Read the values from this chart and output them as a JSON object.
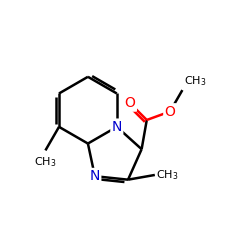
{
  "bg_color": "#ffffff",
  "bond_color": "#000000",
  "N_color": "#0000cd",
  "O_color": "#ff0000",
  "bond_width": 1.8,
  "figsize": [
    2.5,
    2.5
  ],
  "dpi": 100,
  "xlim": [
    0,
    10
  ],
  "ylim": [
    0,
    10
  ]
}
